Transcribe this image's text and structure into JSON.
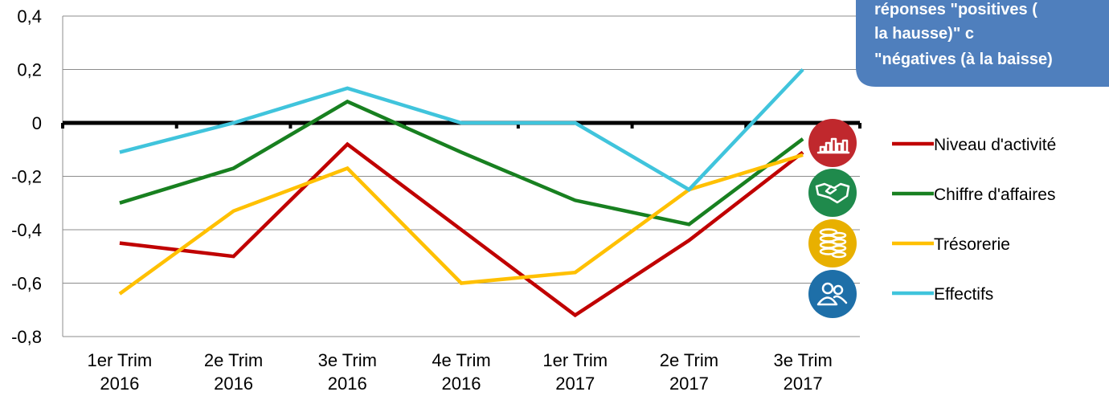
{
  "callout": {
    "lines": [
      "réponses \"positives (",
      "la hausse)\" c",
      "\"négatives (à la baisse)"
    ],
    "color": "#4f7fbd"
  },
  "icons": [
    {
      "name": "bar-chart-icon",
      "color": "#c0282d"
    },
    {
      "name": "handshake-icon",
      "color": "#1f8a4c"
    },
    {
      "name": "coins-icon",
      "color": "#e8b000"
    },
    {
      "name": "people-icon",
      "color": "#1e6fa8"
    }
  ],
  "chart_data": {
    "type": "line",
    "categories": [
      [
        "1er Trim",
        "2016"
      ],
      [
        "2e Trim",
        "2016"
      ],
      [
        "3e Trim",
        "2016"
      ],
      [
        "4e Trim",
        "2016"
      ],
      [
        "1er Trim",
        "2017"
      ],
      [
        "2e Trim",
        "2017"
      ],
      [
        "3e Trim",
        "2017"
      ]
    ],
    "y_ticks": [
      "0,4",
      "0,2",
      "0",
      "-0,2",
      "-0,4",
      "-0,6",
      "-0,8"
    ],
    "ylim": [
      -0.8,
      0.4
    ],
    "grid": true,
    "legend_position": "right",
    "series": [
      {
        "name": "Niveau d'activité",
        "color": "#c00000",
        "values": [
          -0.45,
          -0.5,
          -0.08,
          -0.4,
          -0.72,
          -0.44,
          -0.11
        ]
      },
      {
        "name": "Chiffre d'affaires",
        "color": "#188020",
        "values": [
          -0.3,
          -0.17,
          0.08,
          -0.11,
          -0.29,
          -0.38,
          -0.06
        ]
      },
      {
        "name": "Trésorerie",
        "color": "#ffc000",
        "values": [
          -0.64,
          -0.33,
          -0.17,
          -0.6,
          -0.56,
          -0.25,
          -0.12
        ]
      },
      {
        "name": "Effectifs",
        "color": "#40c4dc",
        "values": [
          -0.11,
          0.0,
          0.13,
          0.0,
          0.0,
          -0.25,
          0.2
        ]
      }
    ]
  }
}
